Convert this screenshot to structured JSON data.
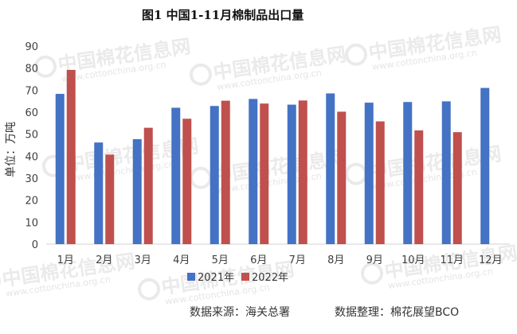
{
  "chart_data": {
    "type": "bar",
    "title": "图1  中国1-11月棉制品出口量",
    "ylabel": "单位：万吨",
    "xlabel": "",
    "ylim": [
      0,
      90
    ],
    "yticks": [
      0,
      10,
      20,
      30,
      40,
      50,
      60,
      70,
      80,
      90
    ],
    "grid": false,
    "legend_position": "bottom",
    "categories": [
      "1月",
      "2月",
      "3月",
      "4月",
      "5月",
      "6月",
      "7月",
      "8月",
      "9月",
      "10月",
      "11月",
      "12月"
    ],
    "series": [
      {
        "name": "2021年",
        "color": "#4472c4",
        "values": [
          68.3,
          46.2,
          47.7,
          62,
          62.8,
          66,
          63.4,
          68.5,
          64.3,
          64.6,
          64.9,
          71
        ]
      },
      {
        "name": "2022年",
        "color": "#c0504d",
        "values": [
          79.2,
          40.7,
          52.9,
          57,
          65.2,
          63.9,
          65.3,
          60.2,
          55.8,
          51.7,
          50.9,
          null
        ]
      }
    ]
  },
  "footer": {
    "source": "数据来源：海关总署",
    "compiler": "数据整理：棉花展望BCO"
  },
  "watermark": {
    "logo_text": "中国棉花信息网",
    "url": "www.cottonchina.org.cn"
  }
}
